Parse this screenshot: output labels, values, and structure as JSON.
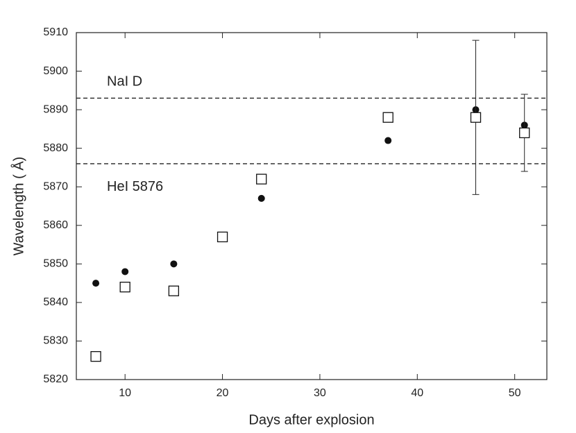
{
  "chart_data": {
    "type": "scatter",
    "xlabel": "Days after explosion",
    "ylabel": "Wavelength ( Å)",
    "x": [
      7,
      10,
      15,
      20,
      24,
      37,
      46,
      51
    ],
    "series": [
      {
        "marker": "circle",
        "color": "#111111",
        "values": [
          5845,
          5848,
          5850,
          5857,
          5867,
          5882,
          5890,
          5886
        ]
      },
      {
        "marker": "square",
        "color": "#111111",
        "values": [
          5826,
          5844,
          5843,
          5857,
          5872,
          5888,
          5888,
          5884
        ],
        "errors": [
          null,
          null,
          null,
          null,
          null,
          null,
          20,
          10
        ]
      }
    ],
    "hlines": [
      {
        "value": 5893,
        "label": "NaI D"
      },
      {
        "value": 5876,
        "label": "HeI 5876"
      }
    ],
    "xlim": [
      5,
      53.3
    ],
    "ylim": [
      5820,
      5910
    ],
    "xticks": [
      10,
      20,
      30,
      40,
      50
    ],
    "yticks": [
      5820,
      5830,
      5840,
      5850,
      5860,
      5870,
      5880,
      5890,
      5900,
      5910
    ]
  }
}
